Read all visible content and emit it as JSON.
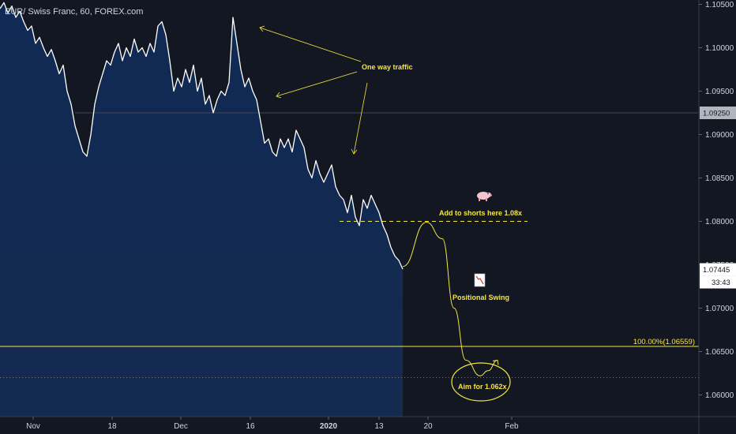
{
  "header": {
    "title": "EUR/ Swiss Franc, 60, FOREX.com"
  },
  "chart_data": {
    "type": "line",
    "title": "EUR/ Swiss Franc, 60, FOREX.com",
    "ylim": [
      1.0575,
      1.1055
    ],
    "y_ticks": [
      "1.10500",
      "1.10000",
      "1.09500",
      "1.09000",
      "1.08500",
      "1.08000",
      "1.07500",
      "1.07000",
      "1.06500",
      "1.06000"
    ],
    "y_tick_values": [
      1.105,
      1.1,
      1.095,
      1.09,
      1.085,
      1.08,
      1.075,
      1.07,
      1.065,
      1.06
    ],
    "x_tick_labels": [
      "Nov",
      "18",
      "Dec",
      "16",
      "2020",
      "13",
      "20",
      "Feb"
    ],
    "series": [
      {
        "values": [
          1.1045,
          1.1052,
          1.104,
          1.1048,
          1.1035,
          1.1042,
          1.103,
          1.102,
          1.1025,
          1.1005,
          1.1012,
          1.1,
          1.099,
          1.0998,
          1.0985,
          1.097,
          1.098,
          1.095,
          1.0935,
          1.091,
          1.0895,
          1.088,
          1.0875,
          1.09,
          1.0935,
          1.0955,
          1.097,
          1.0985,
          1.098,
          1.0995,
          1.1005,
          1.0985,
          1.1,
          1.099,
          1.101,
          1.0995,
          1.1,
          1.099,
          1.1005,
          1.0995,
          1.1025,
          1.103,
          1.1015,
          1.0985,
          1.095,
          1.0965,
          1.0955,
          1.0975,
          1.096,
          1.098,
          1.095,
          1.0965,
          1.0935,
          1.0945,
          1.0925,
          1.094,
          1.095,
          1.0945,
          1.096,
          1.1035,
          1.1005,
          1.0975,
          1.0955,
          1.0965,
          1.095,
          1.094,
          1.0915,
          1.089,
          1.0895,
          1.088,
          1.0875,
          1.0895,
          1.0885,
          1.0895,
          1.088,
          1.0905,
          1.0895,
          1.0885,
          1.086,
          1.085,
          1.087,
          1.0855,
          1.0845,
          1.0855,
          1.0865,
          1.084,
          1.083,
          1.0825,
          1.081,
          1.083,
          1.0805,
          1.0795,
          1.0825,
          1.0815,
          1.083,
          1.082,
          1.081,
          1.0795,
          1.0785,
          1.077,
          1.076,
          1.0755,
          1.0745
        ],
        "color": "#ffffff"
      }
    ],
    "current_price": {
      "label": "1.07445",
      "value": 1.07445,
      "countdown": "33:43"
    },
    "levels": [
      {
        "label": "1.09250",
        "value": 1.0925,
        "color": "#434651"
      },
      {
        "label": "100.00%(1.06559)",
        "value": 1.06559,
        "color": "#f5e642"
      },
      {
        "value": 1.062,
        "color": "#787b86",
        "style": "dotted"
      },
      {
        "value": 1.08,
        "color": "#f5e642",
        "style": "dashed"
      }
    ],
    "projection": {
      "points": [
        1.0748,
        1.0799,
        1.078,
        1.07,
        1.064,
        1.0622,
        1.0628,
        1.064
      ]
    },
    "annotations": {
      "one_way": "One way traffic",
      "add_shorts": "Add to shorts here 1.08x",
      "positional": "Positional Swing",
      "aim": "Aim for 1.062x"
    },
    "colors": {
      "background": "#131722",
      "fill_top": "#0f2a55",
      "fill_bottom": "#152a4f",
      "accent": "#f5e642"
    },
    "icons": {
      "pig": "pig-icon",
      "chart_down": "chart-down-icon"
    }
  }
}
